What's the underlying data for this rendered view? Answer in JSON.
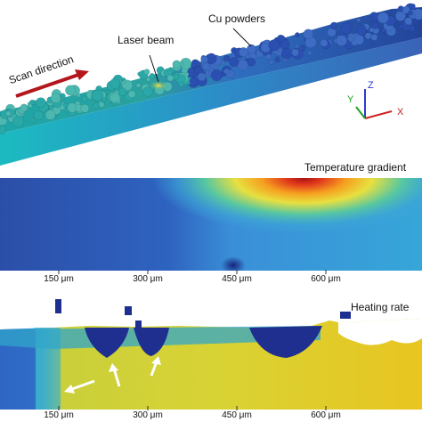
{
  "panel_a": {
    "labels": {
      "cu_powders": "Cu powders",
      "laser_beam": "Laser beam",
      "scan_direction": "Scan direction"
    },
    "axes": {
      "x": "X",
      "y": "Y",
      "z": "Z"
    }
  },
  "panel_b": {
    "title": "Temperature gradient",
    "ticks": [
      "150 μm",
      "300 μm",
      "450 μm",
      "600 μm"
    ]
  },
  "panel_c": {
    "title": "Heating rate",
    "ticks": [
      "150 μm",
      "300 μm",
      "450 μm",
      "600 μm"
    ]
  },
  "colors": {
    "cool": "#2b4fa8",
    "hot": "#c4161c",
    "warm": "#e8c520",
    "cyan": "#1fb3b8",
    "arrow_red": "#b3161c"
  }
}
